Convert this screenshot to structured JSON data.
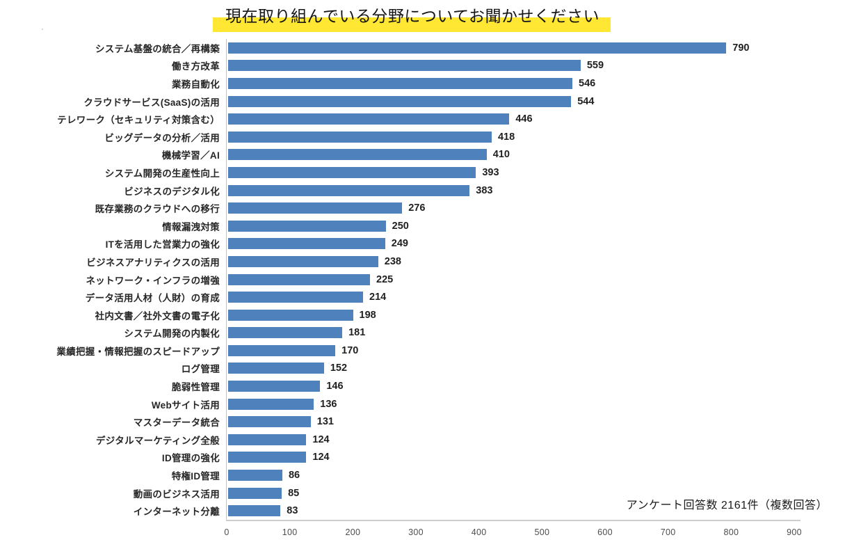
{
  "title": {
    "text": "現在取り組んでいる分野についてお聞かせください",
    "highlight_color": "#ffe733"
  },
  "annotation": "アンケート回答数 2161件（複数回答）",
  "chart_data": {
    "type": "bar",
    "orientation": "horizontal",
    "title": "現在取り組んでいる分野についてお聞かせください",
    "xlabel": "",
    "ylabel": "",
    "xlim": [
      0,
      900
    ],
    "x_ticks": [
      0,
      100,
      200,
      300,
      400,
      500,
      600,
      700,
      800,
      900
    ],
    "grid": false,
    "legend": "none",
    "bar_color": "#4f81bd",
    "value_labels": true,
    "categories": [
      "システム基盤の統合／再構築",
      "働き方改革",
      "業務自動化",
      "クラウドサービス(SaaS)の活用",
      "テレワーク（セキュリティ対策含む）",
      "ビッグデータの分析／活用",
      "機械学習／AI",
      "システム開発の生産性向上",
      "ビジネスのデジタル化",
      "既存業務のクラウドへの移行",
      "情報漏洩対策",
      "ITを活用した営業力の強化",
      "ビジネスアナリティクスの活用",
      "ネットワーク・インフラの増強",
      "データ活用人材（人財）の育成",
      "社内文書／社外文書の電子化",
      "システム開発の内製化",
      "業績把握・情報把握のスピードアップ",
      "ログ管理",
      "脆弱性管理",
      "Webサイト活用",
      "マスターデータ統合",
      "デジタルマーケティング全般",
      "ID管理の強化",
      "特権ID管理",
      "動画のビジネス活用",
      "インターネット分離"
    ],
    "values": [
      790,
      559,
      546,
      544,
      446,
      418,
      410,
      393,
      383,
      276,
      250,
      249,
      238,
      225,
      214,
      198,
      181,
      170,
      152,
      146,
      136,
      131,
      124,
      124,
      86,
      85,
      83
    ]
  }
}
